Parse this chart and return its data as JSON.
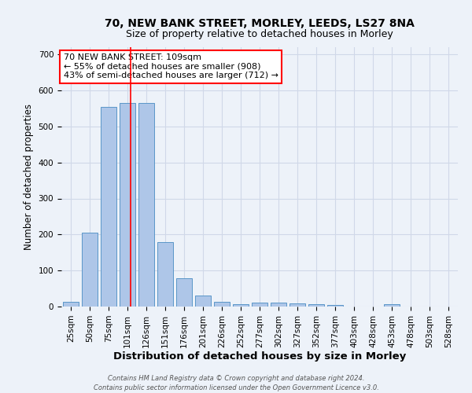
{
  "title1": "70, NEW BANK STREET, MORLEY, LEEDS, LS27 8NA",
  "title2": "Size of property relative to detached houses in Morley",
  "xlabel": "Distribution of detached houses by size in Morley",
  "ylabel": "Number of detached properties",
  "footnote1": "Contains HM Land Registry data © Crown copyright and database right 2024.",
  "footnote2": "Contains public sector information licensed under the Open Government Licence v3.0.",
  "bar_labels": [
    "25sqm",
    "50sqm",
    "75sqm",
    "101sqm",
    "126sqm",
    "151sqm",
    "176sqm",
    "201sqm",
    "226sqm",
    "252sqm",
    "277sqm",
    "302sqm",
    "327sqm",
    "352sqm",
    "377sqm",
    "403sqm",
    "428sqm",
    "453sqm",
    "478sqm",
    "503sqm",
    "528sqm"
  ],
  "bar_values": [
    13,
    205,
    555,
    565,
    565,
    178,
    78,
    30,
    13,
    6,
    10,
    10,
    8,
    6,
    5,
    1,
    0,
    6,
    1,
    0,
    1
  ],
  "bar_color": "#aec6e8",
  "bar_edgecolor": "#5a96c8",
  "grid_color": "#d0d8e8",
  "bg_color": "#edf2f9",
  "red_line_x": 3.18,
  "annotation_text": "70 NEW BANK STREET: 109sqm\n← 55% of detached houses are smaller (908)\n43% of semi-detached houses are larger (712) →",
  "annotation_box_color": "white",
  "annotation_box_edgecolor": "red",
  "ylim": [
    0,
    720
  ],
  "yticks": [
    0,
    100,
    200,
    300,
    400,
    500,
    600,
    700
  ],
  "title1_fontsize": 10,
  "title2_fontsize": 9,
  "xlabel_fontsize": 9.5,
  "ylabel_fontsize": 8.5,
  "tick_fontsize": 7.5,
  "annot_fontsize": 8,
  "footnote_fontsize": 6
}
